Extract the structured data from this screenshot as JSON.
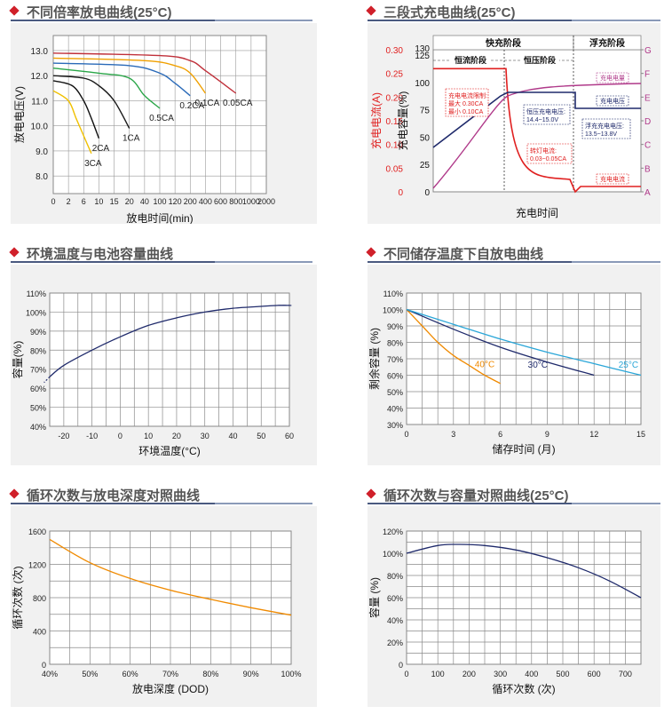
{
  "colors": {
    "accent": "#d0202a",
    "navy": "#1f2a6b",
    "orange": "#f08a00",
    "teal": "#2aa6d8",
    "magenta": "#b03a8a",
    "red": "#e02020"
  },
  "panels": {
    "p1": {
      "title": "不同倍率放电曲线(25°C)"
    },
    "p2": {
      "title": "三段式充电曲线(25°C)"
    },
    "p3": {
      "title": "环境温度与电池容量曲线"
    },
    "p4": {
      "title": "不同储存温度下自放电曲线"
    },
    "p5": {
      "title": "循环次数与放电深度对照曲线"
    },
    "p6": {
      "title": "循环次数与容量对照曲线(25°C)"
    }
  },
  "chart_data": [
    {
      "type": "line",
      "title": "不同倍率放电曲线(25°C)",
      "xlabel": "放电时间(min)",
      "ylabel": "放电电压(V)",
      "x_ticks": [
        "0",
        "2",
        "6",
        "10",
        "15",
        "20",
        "40",
        "100",
        "120",
        "200",
        "400",
        "600",
        "800",
        "1000",
        "2000"
      ],
      "y_ticks": [
        "8.0",
        "9.0",
        "10.0",
        "11.0",
        "12.0",
        "13.0"
      ],
      "ylim": [
        7.3,
        13.6
      ],
      "series": [
        {
          "name": "3CA",
          "points": [
            [
              0,
              11.4
            ],
            [
              2,
              11.0
            ],
            [
              4,
              10.3
            ],
            [
              6,
              9.6
            ],
            [
              8,
              8.9
            ]
          ]
        },
        {
          "name": "2CA",
          "points": [
            [
              0,
              11.8
            ],
            [
              3,
              11.6
            ],
            [
              6,
              11.0
            ],
            [
              8,
              10.3
            ],
            [
              10,
              9.5
            ]
          ]
        },
        {
          "name": "1CA",
          "points": [
            [
              0,
              12.0
            ],
            [
              6,
              11.9
            ],
            [
              10,
              11.6
            ],
            [
              15,
              11.0
            ],
            [
              20,
              9.9
            ]
          ]
        },
        {
          "name": "0.5CA",
          "points": [
            [
              0,
              12.3
            ],
            [
              10,
              12.1
            ],
            [
              20,
              11.9
            ],
            [
              40,
              11.2
            ],
            [
              100,
              10.7
            ]
          ]
        },
        {
          "name": "0.2CA",
          "points": [
            [
              0,
              12.5
            ],
            [
              20,
              12.4
            ],
            [
              100,
              12.1
            ],
            [
              120,
              11.7
            ],
            [
              200,
              11.2
            ]
          ]
        },
        {
          "name": "0.1CA",
          "points": [
            [
              0,
              12.7
            ],
            [
              40,
              12.6
            ],
            [
              120,
              12.4
            ],
            [
              200,
              12.1
            ],
            [
              400,
              11.3
            ]
          ]
        },
        {
          "name": "0.05CA",
          "points": [
            [
              0,
              12.9
            ],
            [
              100,
              12.8
            ],
            [
              200,
              12.6
            ],
            [
              400,
              12.2
            ],
            [
              800,
              11.3
            ]
          ]
        }
      ]
    },
    {
      "type": "line",
      "title": "三段式充电曲线(25°C)",
      "xlabel": "充电时间",
      "ylabel_left_outer": "充电电流(A)",
      "ylabel_left_inner": "充电容量(%)",
      "left_outer_ticks": [
        "0",
        "0.05",
        "0.10",
        "0.15",
        "0.20",
        "0.25",
        "0.30"
      ],
      "left_inner_ticks": [
        "0",
        "25",
        "50",
        "75",
        "100",
        "125",
        "130"
      ],
      "right_ticks": [
        "A",
        "B",
        "C",
        "D",
        "E",
        "F",
        "G"
      ],
      "phases": {
        "fast": "快充阶段",
        "float": "浮充阶段",
        "cc": "恒流阶段",
        "cv": "恒压阶段"
      },
      "series": [
        {
          "name": "充电电流",
          "description": "constant current then tapering"
        },
        {
          "name": "充电电压",
          "description": "rising to plateau"
        },
        {
          "name": "充电电量",
          "description": "capacity rising"
        }
      ],
      "annotations": {
        "current_limit": [
          "充电电流限制:",
          "最大 0.30CA",
          "最小 0.10CA"
        ],
        "cv_voltage": [
          "恒压充电电压:",
          "14.4~15.0V"
        ],
        "float_voltage": [
          "浮充充电电压:",
          "13.5~13.8V"
        ],
        "transfer_current": [
          "转灯电流:",
          "0.03~0.05CA"
        ],
        "lbl_capacity": "充电电量",
        "lbl_voltage": "充电电压",
        "lbl_current": "充电电流"
      }
    },
    {
      "type": "line",
      "title": "环境温度与电池容量曲线",
      "xlabel": "环境温度(°C)",
      "ylabel": "容量(%)",
      "x_ticks": [
        "-20",
        "-10",
        "0",
        "10",
        "20",
        "30",
        "40",
        "50",
        "60"
      ],
      "y_ticks": [
        "40%",
        "50%",
        "60%",
        "70%",
        "80%",
        "90%",
        "100%",
        "110%"
      ],
      "xlim": [
        -25,
        60
      ],
      "ylim": [
        40,
        110
      ],
      "series": [
        {
          "points": [
            [
              -25,
              66
            ],
            [
              -20,
              72
            ],
            [
              -10,
              80
            ],
            [
              0,
              87
            ],
            [
              10,
              93
            ],
            [
              20,
              97
            ],
            [
              30,
              100
            ],
            [
              40,
              102
            ],
            [
              50,
              103
            ],
            [
              56,
              103.5
            ],
            [
              60,
              103.5
            ]
          ]
        }
      ]
    },
    {
      "type": "line",
      "title": "不同储存温度下自放电曲线",
      "xlabel": "储存时间 (月)",
      "ylabel": "剩余容量 (%)",
      "x_ticks": [
        "0",
        "3",
        "6",
        "9",
        "12",
        "15"
      ],
      "y_ticks": [
        "30%",
        "40%",
        "50%",
        "60%",
        "70%",
        "80%",
        "90%",
        "100%",
        "110%"
      ],
      "xlim": [
        0,
        15
      ],
      "ylim": [
        30,
        110
      ],
      "series": [
        {
          "name": "40°C",
          "points": [
            [
              0,
              100
            ],
            [
              1,
              90
            ],
            [
              2,
              80
            ],
            [
              3,
              72
            ],
            [
              4,
              66
            ],
            [
              5,
              60
            ],
            [
              6,
              55
            ]
          ]
        },
        {
          "name": "30°C",
          "points": [
            [
              0,
              100
            ],
            [
              3,
              88
            ],
            [
              6,
              77
            ],
            [
              9,
              68
            ],
            [
              12,
              60
            ]
          ]
        },
        {
          "name": "25°C",
          "points": [
            [
              0,
              100
            ],
            [
              3,
              91
            ],
            [
              6,
              82
            ],
            [
              9,
              74
            ],
            [
              12,
              67
            ],
            [
              15,
              60
            ]
          ]
        }
      ]
    },
    {
      "type": "line",
      "title": "循环次数与放电深度对照曲线",
      "xlabel": "放电深度 (DOD)",
      "ylabel": "循环次数 (次)",
      "x_ticks": [
        "40%",
        "50%",
        "60%",
        "70%",
        "80%",
        "90%",
        "100%"
      ],
      "y_ticks": [
        "0",
        "400",
        "800",
        "1200",
        "1600"
      ],
      "xlim": [
        40,
        100
      ],
      "ylim": [
        0,
        1600
      ],
      "series": [
        {
          "points": [
            [
              40,
              1500
            ],
            [
              50,
              1220
            ],
            [
              60,
              1030
            ],
            [
              70,
              890
            ],
            [
              80,
              780
            ],
            [
              90,
              680
            ],
            [
              100,
              590
            ]
          ]
        }
      ]
    },
    {
      "type": "line",
      "title": "循环次数与容量对照曲线(25°C)",
      "xlabel": "循环次数 (次)",
      "ylabel": "容量 (%)",
      "x_ticks": [
        "0",
        "100",
        "200",
        "300",
        "400",
        "500",
        "600",
        "700"
      ],
      "y_ticks": [
        "0",
        "20%",
        "40%",
        "60%",
        "80%",
        "100%",
        "120%"
      ],
      "xlim": [
        0,
        750
      ],
      "ylim": [
        0,
        120
      ],
      "series": [
        {
          "points": [
            [
              0,
              100
            ],
            [
              100,
              107
            ],
            [
              170,
              108
            ],
            [
              250,
              107
            ],
            [
              350,
              103
            ],
            [
              450,
              96
            ],
            [
              550,
              87
            ],
            [
              650,
              75
            ],
            [
              750,
              60
            ]
          ]
        }
      ]
    }
  ]
}
